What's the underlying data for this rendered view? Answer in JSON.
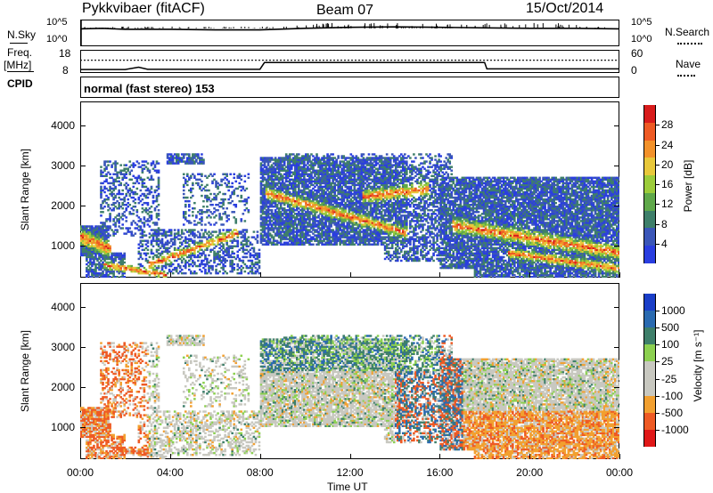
{
  "header": {
    "station": "Pykkvibaer (fitACF)",
    "beam": "Beam 07",
    "date": "15/Oct/2014"
  },
  "nsky_panel": {
    "label": "N.Sky",
    "ytick_top": "10^5",
    "ytick_bottom": "10^0",
    "right_label": "N.Search",
    "right_tick_top": "10^5",
    "right_tick_bottom": "10^0"
  },
  "freq_panel": {
    "label_line1": "Freq.",
    "label_line2": "[MHz]",
    "ytick_top": "18",
    "ytick_bottom": "8",
    "right_label": "Nave",
    "right_tick_top": "60",
    "right_tick_bottom": "0"
  },
  "cpid_panel": {
    "label": "CPID",
    "mode_text": "normal (fast stereo) 153"
  },
  "power_panel": {
    "ylabel": "Slant Range [km]",
    "colorbar_label": "Power [dB]"
  },
  "velocity_panel": {
    "ylabel": "Slant Range [km]",
    "colorbar_label": "Velocity [m s⁻¹]"
  },
  "xaxis": {
    "label": "Time UT"
  },
  "colors": {
    "power_scale": [
      "#2a3ee0",
      "#3a56b8",
      "#3e7f6a",
      "#5fa84a",
      "#9ccc3a",
      "#e8c83a",
      "#f2912a",
      "#ee5a24",
      "#d81c1c"
    ],
    "velocity_scale": [
      "#e01818",
      "#ee5a24",
      "#f2a030",
      "#c8c8c0",
      "#c8c8c0",
      "#8cd050",
      "#3e7f6a",
      "#2a6ab0",
      "#1a3ec8"
    ]
  },
  "chart_data": [
    {
      "type": "line",
      "name": "nsky-nsearch",
      "x_unit": "hours UT",
      "x": [
        0,
        1,
        2,
        4,
        6,
        8,
        10,
        12,
        14,
        16,
        18,
        20,
        22,
        24
      ],
      "y": [
        3.5,
        3.6,
        3.4,
        3.4,
        3.3,
        3.3,
        3.6,
        3.8,
        3.9,
        3.8,
        3.7,
        3.6,
        3.6,
        3.5
      ],
      "yticks": [
        "10^0",
        "10^5"
      ]
    },
    {
      "type": "line",
      "name": "frequency",
      "x": [
        0,
        2,
        2.6,
        3,
        8,
        8.2,
        18,
        18.1,
        24
      ],
      "y": [
        9.5,
        9.5,
        10.5,
        9.6,
        9.6,
        12.5,
        12.5,
        9.8,
        9.8
      ],
      "ylim": [
        8,
        18
      ],
      "yticks": [
        "8",
        "18"
      ]
    },
    {
      "type": "heatmap",
      "name": "power",
      "ylabel": "Slant Range [km]",
      "ylim": [
        200,
        4600
      ],
      "yticks": [
        1000,
        2000,
        3000,
        4000
      ],
      "xlim": [
        0,
        24
      ],
      "xtick_labels": [
        "00:00",
        "04:00",
        "08:00",
        "12:00",
        "16:00",
        "20:00",
        "00:00"
      ],
      "colorbar_ticks": [
        "4",
        "8",
        "12",
        "16",
        "20",
        "24",
        "28"
      ],
      "colorbar_label": "Power [dB]"
    },
    {
      "type": "heatmap",
      "name": "velocity",
      "ylabel": "Slant Range [km]",
      "ylim": [
        200,
        4600
      ],
      "yticks": [
        1000,
        2000,
        3000,
        4000
      ],
      "xlim": [
        0,
        24
      ],
      "xtick_labels": [
        "00:00",
        "04:00",
        "08:00",
        "12:00",
        "16:00",
        "20:00",
        "00:00"
      ],
      "colorbar_ticks": [
        "-1000",
        "-500",
        "-100",
        "-25",
        "25",
        "100",
        "500",
        "1000"
      ],
      "colorbar_label": "Velocity [m s⁻¹]"
    }
  ]
}
